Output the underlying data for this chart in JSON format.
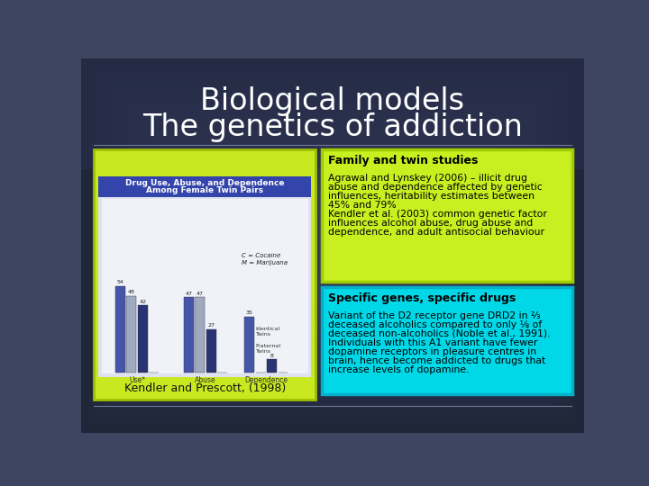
{
  "title_line1": "Biological models",
  "title_line2": "The genetics of addiction",
  "title_color": "#ffffff",
  "bg_color_center": "#3d4560",
  "bg_color_edge": "#1e2535",
  "box1_title": "Family and twin studies",
  "box1_bg": "#c8f020",
  "box1_border": "#a0cc00",
  "box1_text1a": "Agrawal and Lynskey (2006) – illicit drug",
  "box1_text1b": "abuse and dependence affected by genetic",
  "box1_text1c": "influences, heritability estimates between",
  "box1_text1d": "45% and 79%",
  "box1_text2a": "Kendler ",
  "box1_text2b": "et al.",
  "box1_text2c": " (2003) common genetic factor",
  "box1_text3a": "influences alcohol abuse, drug abuse and",
  "box1_text3b": "dependence, and adult antisocial behaviour",
  "box2_title": "Specific genes, specific drugs",
  "box2_bg": "#00d8e8",
  "box2_border": "#00b0c8",
  "box2_text1": "Variant of the D2 receptor gene DRD2 in ⅔",
  "box2_text2": "deceased alcoholics compared to only ⅛ of",
  "box2_text3a": "deceased non-alcoholics (Noble ",
  "box2_text3b": "et al.",
  "box2_text3c": ", 1991).",
  "box2_text4": "Individuals with this A1 variant have fewer",
  "box2_text5": "dopamine receptors in pleasure centres in",
  "box2_text6": "brain, hence become addicted to drugs that",
  "box2_text7": "increase levels of dopamine.",
  "caption": "Kendler and Prescott, (1998)",
  "separator_color": "#707898",
  "left_box_bg": "#c8e820",
  "left_box_border": "#a0c000",
  "chart_title_bg": "#3344aa",
  "chart_bg": "#e8ecf4",
  "chart_title_text": "Drug Use, Abuse, and Dependence",
  "chart_title_text2": "Among Female Twin Pairs"
}
